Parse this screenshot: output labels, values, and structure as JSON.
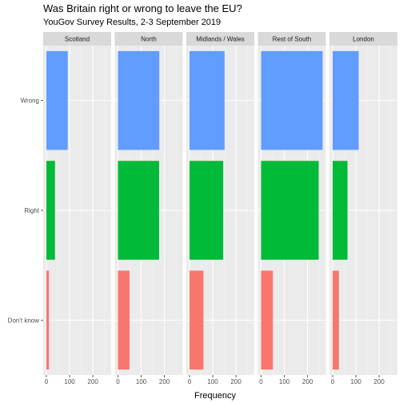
{
  "chart_data": {
    "type": "bar",
    "orientation": "horizontal",
    "title": "Was Britain right or wrong to leave the EU?",
    "subtitle": "YouGov Survey Results, 2-3 September 2019",
    "xlabel": "Frequency",
    "ylabel": "",
    "xlim": [
      0,
      265
    ],
    "xticks": [
      0,
      100,
      200
    ],
    "categories": [
      "Wrong",
      "Right",
      "Don't know"
    ],
    "category_colors": {
      "Wrong": "#619CFF",
      "Right": "#00BA38",
      "Don't know": "#F8766D"
    },
    "facets": [
      {
        "name": "Scotland",
        "values": {
          "Wrong": 92,
          "Right": 37,
          "Don't know": 11
        }
      },
      {
        "name": "North",
        "values": {
          "Wrong": 178,
          "Right": 177,
          "Don't know": 50
        }
      },
      {
        "name": "Midlands / Wales",
        "values": {
          "Wrong": 151,
          "Right": 145,
          "Don't know": 60
        }
      },
      {
        "name": "Rest of South",
        "values": {
          "Wrong": 265,
          "Right": 248,
          "Don't know": 51
        }
      },
      {
        "name": "London",
        "values": {
          "Wrong": 112,
          "Right": 64,
          "Don't know": 27
        }
      }
    ],
    "grid": true,
    "legend": "none",
    "panel_background": "#EBEBEB",
    "strip_background": "#D9D9D9"
  }
}
